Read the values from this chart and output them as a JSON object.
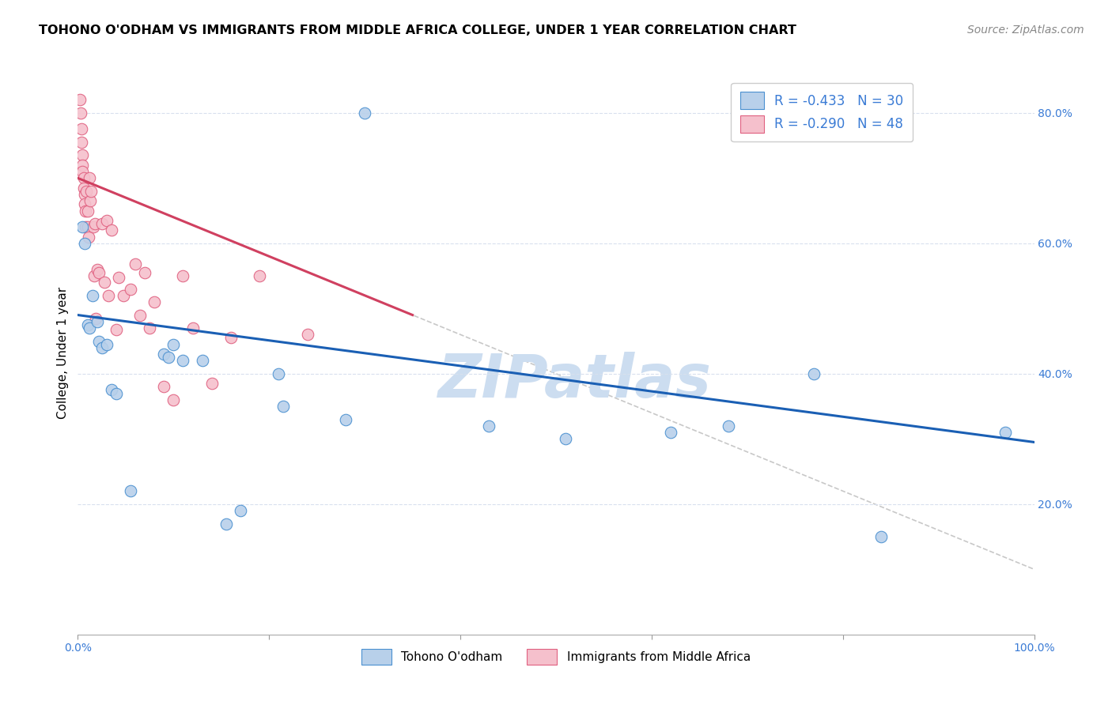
{
  "title": "TOHONO O'ODHAM VS IMMIGRANTS FROM MIDDLE AFRICA COLLEGE, UNDER 1 YEAR CORRELATION CHART",
  "source": "Source: ZipAtlas.com",
  "ylabel": "College, Under 1 year",
  "xlim": [
    0.0,
    1.0
  ],
  "ylim": [
    0.0,
    0.865
  ],
  "yticks": [
    0.2,
    0.4,
    0.6,
    0.8
  ],
  "ytick_labels": [
    "20.0%",
    "40.0%",
    "60.0%",
    "80.0%"
  ],
  "xticks": [
    0.0,
    0.2,
    0.4,
    0.6,
    0.8,
    1.0
  ],
  "xtick_labels": [
    "0.0%",
    "",
    "",
    "",
    "",
    "100.0%"
  ],
  "blue_scatter_x": [
    0.005,
    0.007,
    0.01,
    0.012,
    0.015,
    0.02,
    0.022,
    0.025,
    0.03,
    0.035,
    0.04,
    0.055,
    0.09,
    0.095,
    0.1,
    0.11,
    0.13,
    0.155,
    0.21,
    0.215,
    0.28,
    0.3,
    0.43,
    0.51,
    0.62,
    0.68,
    0.77,
    0.84,
    0.97,
    0.17
  ],
  "blue_scatter_y": [
    0.625,
    0.6,
    0.475,
    0.47,
    0.52,
    0.48,
    0.45,
    0.44,
    0.445,
    0.375,
    0.37,
    0.22,
    0.43,
    0.425,
    0.445,
    0.42,
    0.42,
    0.17,
    0.4,
    0.35,
    0.33,
    0.8,
    0.32,
    0.3,
    0.31,
    0.32,
    0.4,
    0.15,
    0.31,
    0.19
  ],
  "pink_scatter_x": [
    0.002,
    0.003,
    0.004,
    0.004,
    0.005,
    0.005,
    0.005,
    0.006,
    0.006,
    0.007,
    0.007,
    0.008,
    0.008,
    0.009,
    0.01,
    0.01,
    0.011,
    0.012,
    0.013,
    0.014,
    0.016,
    0.017,
    0.018,
    0.019,
    0.02,
    0.022,
    0.025,
    0.028,
    0.03,
    0.032,
    0.035,
    0.04,
    0.043,
    0.048,
    0.055,
    0.06,
    0.065,
    0.07,
    0.075,
    0.08,
    0.09,
    0.1,
    0.11,
    0.12,
    0.14,
    0.16,
    0.19,
    0.24
  ],
  "pink_scatter_y": [
    0.82,
    0.8,
    0.775,
    0.755,
    0.735,
    0.72,
    0.71,
    0.7,
    0.685,
    0.675,
    0.66,
    0.65,
    0.625,
    0.68,
    0.65,
    0.625,
    0.61,
    0.7,
    0.665,
    0.68,
    0.625,
    0.55,
    0.63,
    0.485,
    0.56,
    0.555,
    0.63,
    0.54,
    0.635,
    0.52,
    0.62,
    0.468,
    0.548,
    0.52,
    0.53,
    0.568,
    0.49,
    0.555,
    0.47,
    0.51,
    0.38,
    0.36,
    0.55,
    0.47,
    0.385,
    0.455,
    0.55,
    0.46
  ],
  "blue_line_x": [
    0.0,
    1.0
  ],
  "blue_line_y": [
    0.49,
    0.295
  ],
  "pink_line_x": [
    0.0,
    0.35
  ],
  "pink_line_y": [
    0.7,
    0.49
  ],
  "gray_dashed_line_x": [
    0.0,
    1.0
  ],
  "gray_dashed_line_y": [
    0.7,
    0.1
  ],
  "legend_blue_label_r": "R = -0.433",
  "legend_blue_label_n": "N = 30",
  "legend_pink_label_r": "R = -0.290",
  "legend_pink_label_n": "N = 48",
  "legend_bottom_blue": "Tohono O'odham",
  "legend_bottom_pink": "Immigrants from Middle Africa",
  "blue_fill_color": "#b8d0ea",
  "blue_edge_color": "#4a90d0",
  "pink_fill_color": "#f5c0cc",
  "pink_edge_color": "#e06080",
  "blue_line_color": "#1a5fb4",
  "pink_line_color": "#d04060",
  "gray_dashed_color": "#c8c8c8",
  "grid_color": "#d8e0ee",
  "title_fontsize": 11.5,
  "axis_label_fontsize": 11,
  "tick_fontsize": 10,
  "source_fontsize": 10,
  "legend_fontsize": 12,
  "watermark": "ZIPatlas",
  "watermark_color": "#ccddf0",
  "background_color": "#ffffff"
}
